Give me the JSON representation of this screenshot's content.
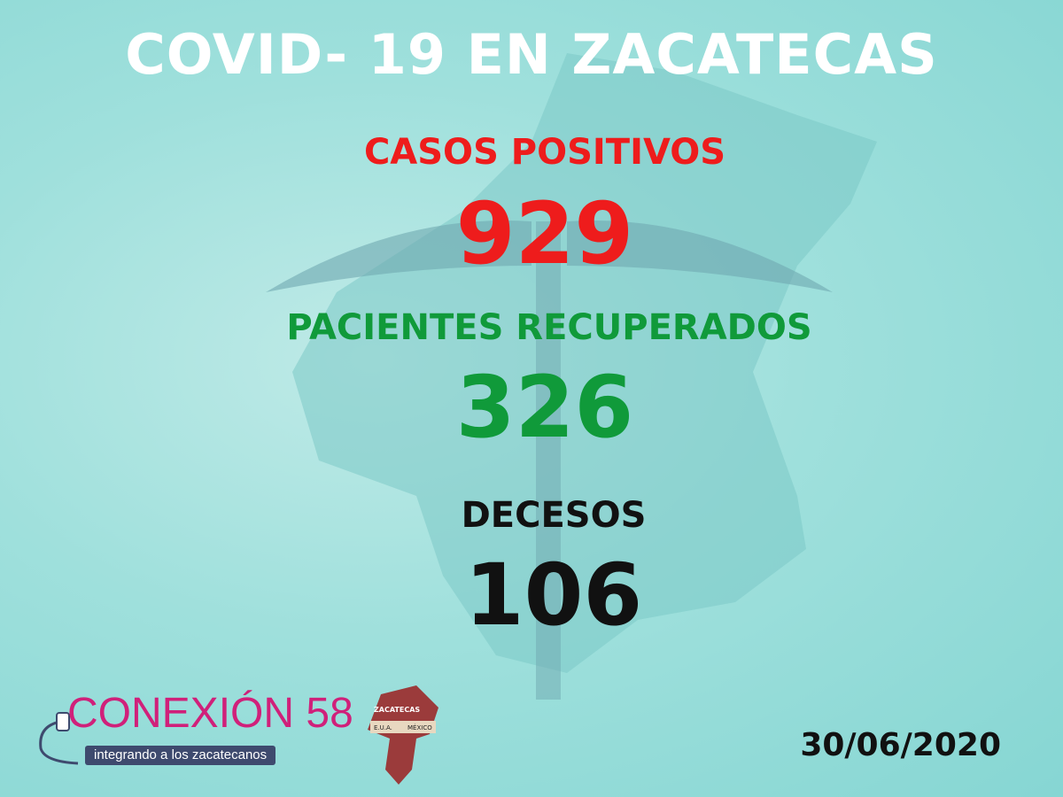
{
  "title": "COVID- 19 EN ZACATECAS",
  "stats": [
    {
      "label": "CASOS POSITIVOS",
      "value": "929",
      "color": "#ee1c1c"
    },
    {
      "label": "PACIENTES RECUPERADOS",
      "value": "326",
      "color": "#109a3a"
    },
    {
      "label": "DECESOS",
      "value": "106",
      "color": "#111111"
    }
  ],
  "date": "30/06/2020",
  "logo": {
    "brand": "CONEXIÓN 58",
    "tagline": "integrando a los zacatecanos",
    "map_labels": [
      "ZACATECAS",
      "E.U.A.",
      "MÉXICO"
    ]
  }
}
